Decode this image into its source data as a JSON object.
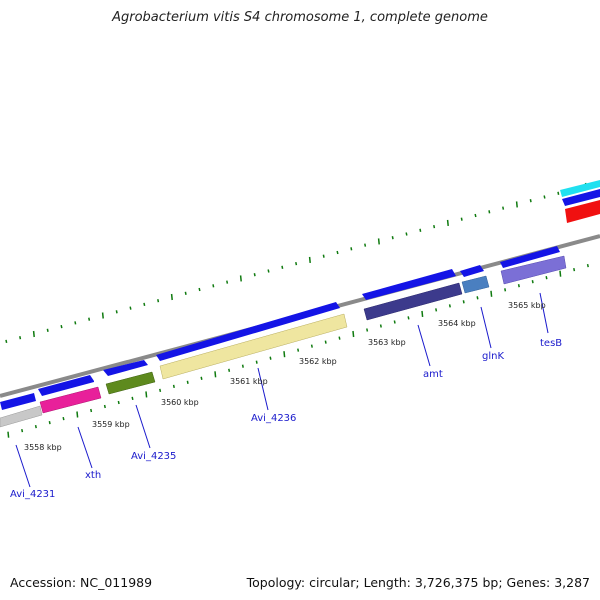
{
  "title": "Agrobacterium vitis S4 chromosome 1, complete genome",
  "footer": {
    "accession": "Accession: NC_011989",
    "stats": "Topology: circular; Length: 3,726,375 bp; Genes: 3,287"
  },
  "colors": {
    "backbone": "#888888",
    "tick": "#0f7a0f",
    "cds_blue": "#1414e6",
    "gene_label": "#1a1acc"
  },
  "axis_labels": [
    "3558 kbp",
    "3559 kbp",
    "3560 kbp",
    "3561 kbp",
    "3562 kbp",
    "3563 kbp",
    "3564 kbp",
    "3565 kbp"
  ],
  "gene_labels": [
    "Avi_4231",
    "xth",
    "Avi_4235",
    "Avi_4236",
    "amt",
    "glnK",
    "tesB"
  ],
  "feature_colors": {
    "grey": "#c8c8c8",
    "magenta": "#e8209a",
    "olive": "#5e8a1e",
    "khaki": "#efe6a0",
    "navy": "#3c3a8c",
    "steel": "#4a7fc0",
    "lavender": "#7b6fd6",
    "cyan": "#20e0f0",
    "red": "#f01010"
  }
}
